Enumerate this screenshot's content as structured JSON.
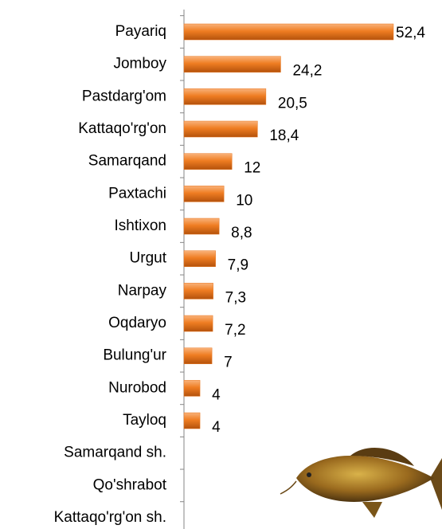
{
  "chart_data": {
    "type": "bar",
    "orientation": "horizontal",
    "color": "#e8761e",
    "categories": [
      "Payariq",
      "Jomboy",
      "Pastdarg'om",
      "Kattaqo'rg'on",
      "Samarqand",
      "Paxtachi",
      "Ishtixon",
      "Urgut",
      "Narpay",
      "Oqdaryo",
      "Bulung'ur",
      "Nurobod",
      "Tayloq",
      "Samarqand sh.",
      "Qo'shrabot",
      "Kattaqo'rg'on sh."
    ],
    "values": [
      52.4,
      24.2,
      20.5,
      18.4,
      12,
      10,
      8.8,
      7.9,
      7.3,
      7.2,
      7,
      4,
      4,
      null,
      null,
      null
    ],
    "value_labels": [
      "52,4",
      "24,2",
      "20,5",
      "18,4",
      "12",
      "10",
      "8,8",
      "7,9",
      "7,3",
      "7,2",
      "7",
      "4",
      "4",
      null,
      null,
      null
    ]
  }
}
